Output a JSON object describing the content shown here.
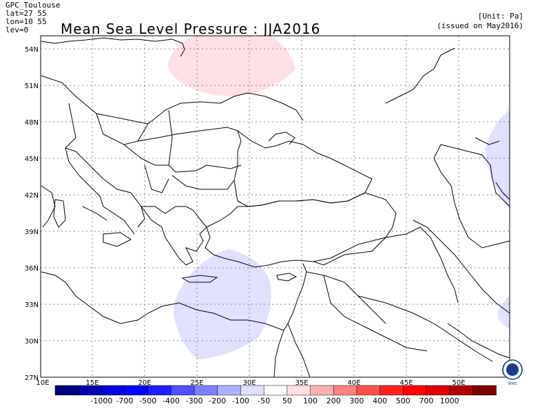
{
  "header": {
    "source": "GPC_Toulouse",
    "lat": "lat=27 55",
    "lon": "lon=10 55",
    "lev": "lev=0",
    "title": "Mean Sea Level Pressure : JJA2016",
    "unit": "[Unit: Pa]",
    "issued": "(issued on May2016)"
  },
  "map": {
    "lat_labels": [
      "54N",
      "51N",
      "48N",
      "45N",
      "42N",
      "39N",
      "36N",
      "33N",
      "30N",
      "27N"
    ],
    "lon_labels": [
      "10E",
      "15E",
      "20E",
      "25E",
      "30E",
      "35E",
      "40E",
      "45E",
      "50E"
    ],
    "grid": true,
    "lon_range": [
      10,
      55
    ],
    "lat_range": [
      27,
      55
    ],
    "anomalies": [
      {
        "label": "positive",
        "center_lon": 29,
        "center_lat": 53.5,
        "category": "50..100"
      },
      {
        "label": "negative",
        "center_lon": 29.5,
        "center_lat": 32.5,
        "category": "-100..-50"
      },
      {
        "label": "negative",
        "center_lon": 55,
        "center_lat": 45.5,
        "category": "-100..-50"
      },
      {
        "label": "negative",
        "center_lon": 55,
        "center_lat": 32.5,
        "category": "-100..-50"
      }
    ]
  },
  "colorbar": {
    "colors": [
      "#000080",
      "#0000b0",
      "#0000dd",
      "#0000ff",
      "#2020ff",
      "#5050ff",
      "#8080ff",
      "#b0b0ff",
      "#e0e0ff",
      "#ffffff",
      "#ffe0e0",
      "#ffb0b0",
      "#ff8080",
      "#ff5050",
      "#ff2020",
      "#ff0000",
      "#dd0000",
      "#b00000",
      "#800000"
    ],
    "labels": [
      "-1000",
      "-700",
      "-500",
      "-400",
      "-300",
      "-200",
      "-100",
      "-50",
      "50",
      "100",
      "200",
      "300",
      "400",
      "500",
      "700",
      "1000"
    ]
  },
  "logo": {
    "text": "WMO"
  }
}
